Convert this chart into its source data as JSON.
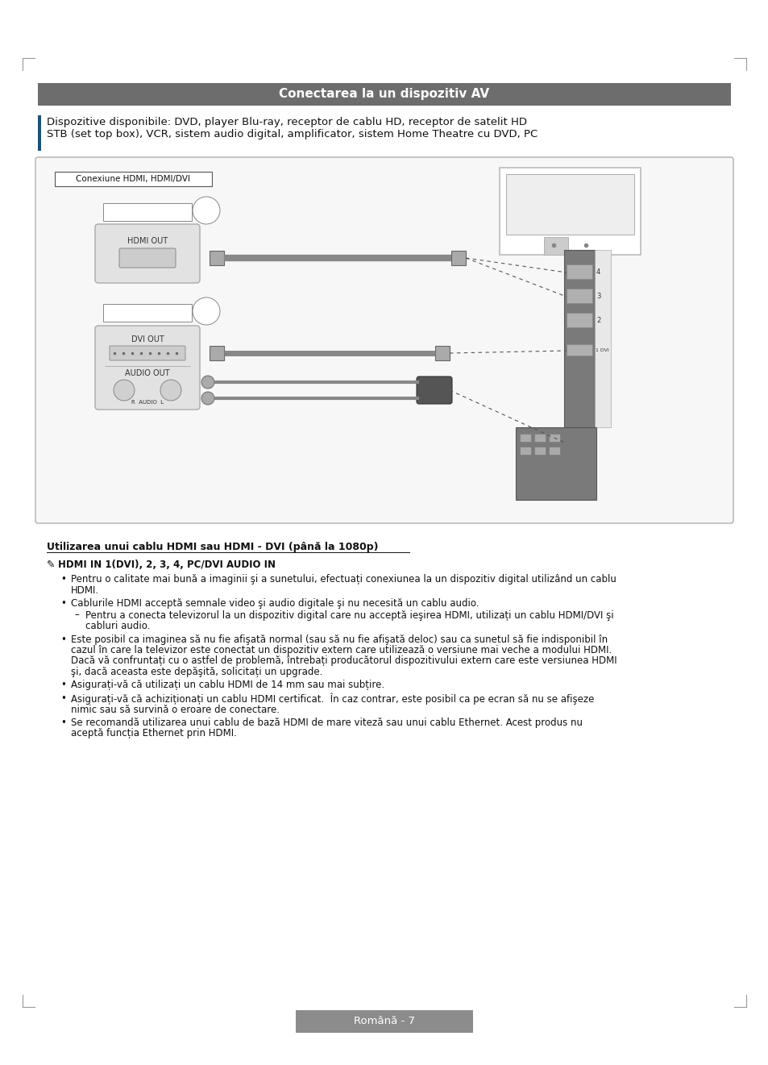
{
  "page_bg": "#ffffff",
  "title_bar_color": "#6d6d6d",
  "title_text": "Conectarea la un dispozitiv AV",
  "title_text_color": "#ffffff",
  "title_fontsize": 11,
  "sidebar_color": "#1a5276",
  "desc_text_line1": "Dispozitive disponibile: DVD, player Blu-ray, receptor de cablu HD, receptor de satelit HD",
  "desc_text_line2": "STB (set top box), VCR, sistem audio digital, amplificator, sistem Home Theatre cu DVD, PC",
  "desc_fontsize": 9.5,
  "box_label": "Conexiune HDMI, HDMI/DVI",
  "section_title": "Utilizarea unui cablu HDMI sau HDMI - DVI (până la 1080p)",
  "note_line": "HDMI IN 1(DVI), 2, 3, 4, PC/DVI AUDIO IN",
  "bullets": [
    "Pentru o calitate mai bună a imaginii şi a sunetului, efectuați conexiunea la un dispozitiv digital utilizând un cablu\nHDMI.",
    "Cablurile HDMI acceptă semnale video şi audio digitale şi nu necesită un cablu audio.",
    "Este posibil ca imaginea să nu fie afişată normal (sau să nu fie afişată deloc) sau ca sunetul să fie indisponibil în\ncazul în care la televizor este conectat un dispozitiv extern care utilizează o versiune mai veche a modului HDMI.\nDacă vă confruntați cu o astfel de problemă, întrebați producătorul dispozitivului extern care este versiunea HDMI\nşi, dacă aceasta este depăşită, solicitați un upgrade.",
    "Asigurați-vă că utilizați un cablu HDMI de 14 mm sau mai subțire.",
    "Asigurați-vă că achiziționați un cablu HDMI certificat.  În caz contrar, este posibil ca pe ecran să nu se afişeze\nnimic sau să survină o eroare de conectare.",
    "Se recomandă utilizarea unui cablu de bază HDMI de mare viteză sau unui cablu Ethernet. Acest produs nu\naceptă funcția Ethernet prin HDMI."
  ],
  "sub_bullet": "Pentru a conecta televizorul la un dispozitiv digital care nu acceptă ieşirea HDMI, utilizați un cablu HDMI/DVI şi\n    cabluri audio.",
  "footer_text": "Română - 7",
  "footer_bg": "#8c8c8c",
  "footer_text_color": "#ffffff"
}
